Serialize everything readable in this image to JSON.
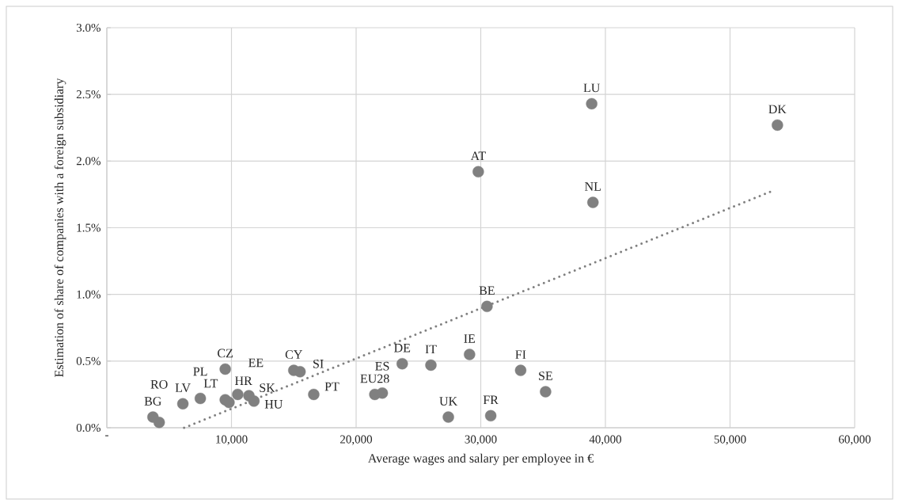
{
  "chart_data": {
    "type": "scatter",
    "xlabel": "Average wages and salary per employee in €",
    "ylabel": "Estimation of share of companies with a foreign subsidiary",
    "series": [
      {
        "type": "scatter",
        "color": "#808080",
        "marker": "circle",
        "x": [
          38900,
          53800,
          29800,
          39000,
          30500,
          29100,
          33200,
          35200,
          30800,
          27400,
          26000,
          23700,
          21500,
          22100,
          3700,
          4200,
          6100,
          7500,
          9500,
          9500,
          9800,
          10500,
          11400,
          11800,
          15000,
          15500,
          16600
        ],
        "values": [
          2.43,
          2.27,
          1.92,
          1.69,
          0.91,
          0.55,
          0.43,
          0.27,
          0.09,
          0.08,
          0.47,
          0.48,
          0.25,
          0.26,
          0.08,
          0.04,
          0.18,
          0.22,
          0.44,
          0.21,
          0.19,
          0.25,
          0.24,
          0.2,
          0.43,
          0.42,
          0.25
        ]
      },
      {
        "type": "line",
        "color": "#808080",
        "line_style": "dotted",
        "marker": "none",
        "x": [
          6200,
          53500
        ],
        "values": [
          0,
          1.78
        ]
      }
    ],
    "annotations": [
      {
        "text": "LU",
        "x": 38900,
        "y": 2.43
      },
      {
        "text": "DK",
        "x": 53800,
        "y": 2.27
      },
      {
        "text": "AT",
        "x": 29800,
        "y": 1.92
      },
      {
        "text": "NL",
        "x": 39000,
        "y": 1.69
      },
      {
        "text": "BE",
        "x": 30500,
        "y": 0.91
      },
      {
        "text": "IE",
        "x": 29100,
        "y": 0.55
      },
      {
        "text": "FI",
        "x": 33200,
        "y": 0.43
      },
      {
        "text": "SE",
        "x": 35200,
        "y": 0.27
      },
      {
        "text": "FR",
        "x": 30800,
        "y": 0.09
      },
      {
        "text": "UK",
        "x": 27400,
        "y": 0.08
      },
      {
        "text": "IT",
        "x": 26000,
        "y": 0.47
      },
      {
        "text": "DE",
        "x": 23700,
        "y": 0.48
      },
      {
        "text": "EU28",
        "x": 21500,
        "y": 0.25
      },
      {
        "text": "ES",
        "x": 22100,
        "y": 0.26
      },
      {
        "text": "BG",
        "x": 3700,
        "y": 0.08
      },
      {
        "text": "RO",
        "x": 4200,
        "y": 0.04
      },
      {
        "text": "LV",
        "x": 6100,
        "y": 0.18
      },
      {
        "text": "PL",
        "x": 7500,
        "y": 0.22
      },
      {
        "text": "CZ",
        "x": 9500,
        "y": 0.44
      },
      {
        "text": "HR",
        "x": 9500,
        "y": 0.21
      },
      {
        "text": "LT",
        "x": 9800,
        "y": 0.19
      },
      {
        "text": "EE",
        "x": 10500,
        "y": 0.25
      },
      {
        "text": "SK",
        "x": 11400,
        "y": 0.24
      },
      {
        "text": "HU",
        "x": 11800,
        "y": 0.2
      },
      {
        "text": "CY",
        "x": 15000,
        "y": 0.43
      },
      {
        "text": "SI",
        "x": 15500,
        "y": 0.42
      },
      {
        "text": "PT",
        "x": 16600,
        "y": 0.25
      }
    ],
    "xlim": [
      0,
      60000
    ],
    "xticks": [
      {
        "value": 0,
        "label": "-"
      },
      {
        "value": 10000,
        "label": "10,000"
      },
      {
        "value": 20000,
        "label": "20,000"
      },
      {
        "value": 30000,
        "label": "30,000"
      },
      {
        "value": 40000,
        "label": "40,000"
      },
      {
        "value": 50000,
        "label": "50,000"
      },
      {
        "value": 60000,
        "label": "60,000"
      }
    ],
    "ylim": [
      0,
      3
    ],
    "yticks": [
      {
        "value": 0,
        "label": "0.0%"
      },
      {
        "value": 0.5,
        "label": "0.5%"
      },
      {
        "value": 1,
        "label": "1.0%"
      },
      {
        "value": 1.5,
        "label": "1.5%"
      },
      {
        "value": 2,
        "label": "2.0%"
      },
      {
        "value": 2.5,
        "label": "2.5%"
      },
      {
        "value": 3,
        "label": "3.0%"
      }
    ],
    "grid": true
  }
}
